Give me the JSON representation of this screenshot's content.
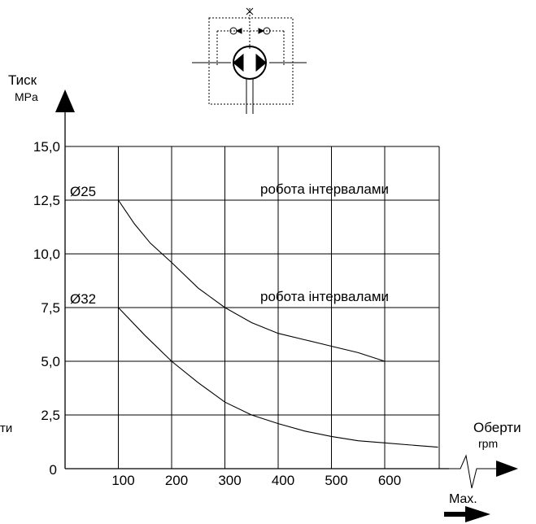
{
  "chart_data": {
    "type": "line",
    "ylabel": "Тиск",
    "yunit": "MPa",
    "xlabel": "Оберти",
    "xunit": "rpm",
    "left_edge_label": "ти",
    "max_label": "Max.",
    "x_ticks": [
      "100",
      "200",
      "300",
      "400",
      "500",
      "600"
    ],
    "y_ticks": [
      "15,0",
      "12,5",
      "10,0",
      "7,5",
      "5,0",
      "2,5",
      "0"
    ],
    "xlim": [
      0,
      700
    ],
    "ylim": [
      0,
      15
    ],
    "grid": true,
    "series": [
      {
        "name": "Ø25",
        "points": [
          [
            0,
            12.5
          ],
          [
            100,
            12.5
          ],
          [
            130,
            11.4
          ],
          [
            160,
            10.5
          ],
          [
            200,
            9.6
          ],
          [
            250,
            8.4
          ],
          [
            300,
            7.5
          ],
          [
            350,
            6.8
          ],
          [
            400,
            6.3
          ],
          [
            450,
            6.0
          ],
          [
            500,
            5.7
          ],
          [
            550,
            5.4
          ],
          [
            600,
            5.0
          ]
        ],
        "limit_value": 12.5,
        "limit_label": "робота інтервалами"
      },
      {
        "name": "Ø32",
        "points": [
          [
            0,
            7.5
          ],
          [
            100,
            7.5
          ],
          [
            150,
            6.2
          ],
          [
            200,
            5.0
          ],
          [
            250,
            4.0
          ],
          [
            300,
            3.1
          ],
          [
            350,
            2.5
          ],
          [
            400,
            2.1
          ],
          [
            450,
            1.75
          ],
          [
            500,
            1.5
          ],
          [
            550,
            1.3
          ],
          [
            600,
            1.2
          ],
          [
            650,
            1.1
          ],
          [
            700,
            1.0
          ]
        ],
        "limit_value": 7.5,
        "limit_label": "робота інтервалами"
      }
    ]
  }
}
